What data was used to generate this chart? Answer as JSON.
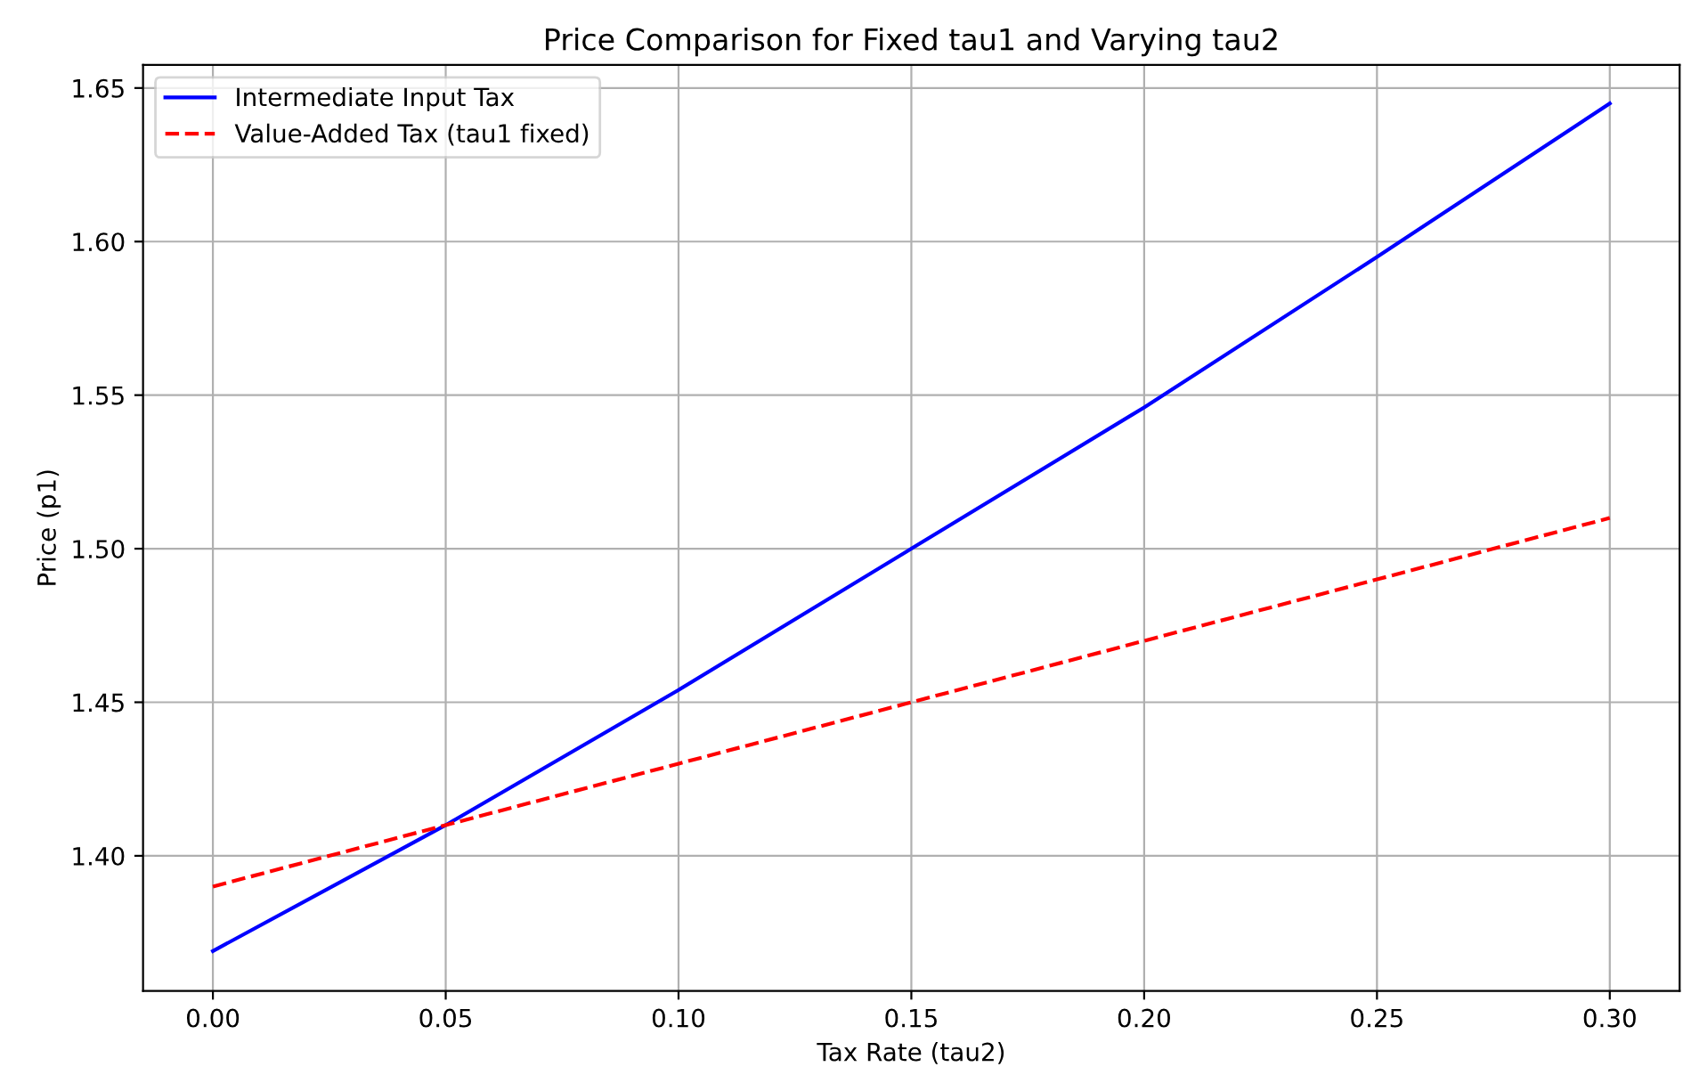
{
  "chart_data": {
    "type": "line",
    "title": "Price Comparison for Fixed tau1 and Varying tau2",
    "xlabel": "Tax Rate (tau2)",
    "ylabel": "Price (p1)",
    "x": [
      0,
      0.05,
      0.1,
      0.15,
      0.2,
      0.25,
      0.3
    ],
    "series": [
      {
        "name": "Intermediate Input Tax",
        "color": "#0000ff",
        "line_style": "solid",
        "values": [
          1.369,
          1.41,
          1.454,
          1.5,
          1.546,
          1.595,
          1.645
        ]
      },
      {
        "name": "Value-Added Tax (tau1 fixed)",
        "color": "#ff0000",
        "line_style": "dashed",
        "values": [
          1.39,
          1.41,
          1.43,
          1.45,
          1.47,
          1.49,
          1.51
        ]
      }
    ],
    "xlim": [
      -0.015,
      0.315
    ],
    "ylim": [
      1.356,
      1.6575
    ],
    "xticks": [
      {
        "value": 0,
        "label": "0.00"
      },
      {
        "value": 0.05,
        "label": "0.05"
      },
      {
        "value": 0.1,
        "label": "0.10"
      },
      {
        "value": 0.15,
        "label": "0.15"
      },
      {
        "value": 0.2,
        "label": "0.20"
      },
      {
        "value": 0.25,
        "label": "0.25"
      },
      {
        "value": 0.3,
        "label": "0.30"
      }
    ],
    "yticks": [
      {
        "value": 1.4,
        "label": "1.40"
      },
      {
        "value": 1.45,
        "label": "1.45"
      },
      {
        "value": 1.5,
        "label": "1.50"
      },
      {
        "value": 1.55,
        "label": "1.55"
      },
      {
        "value": 1.6,
        "label": "1.60"
      },
      {
        "value": 1.65,
        "label": "1.65"
      }
    ],
    "grid": true,
    "legend": "top left"
  }
}
